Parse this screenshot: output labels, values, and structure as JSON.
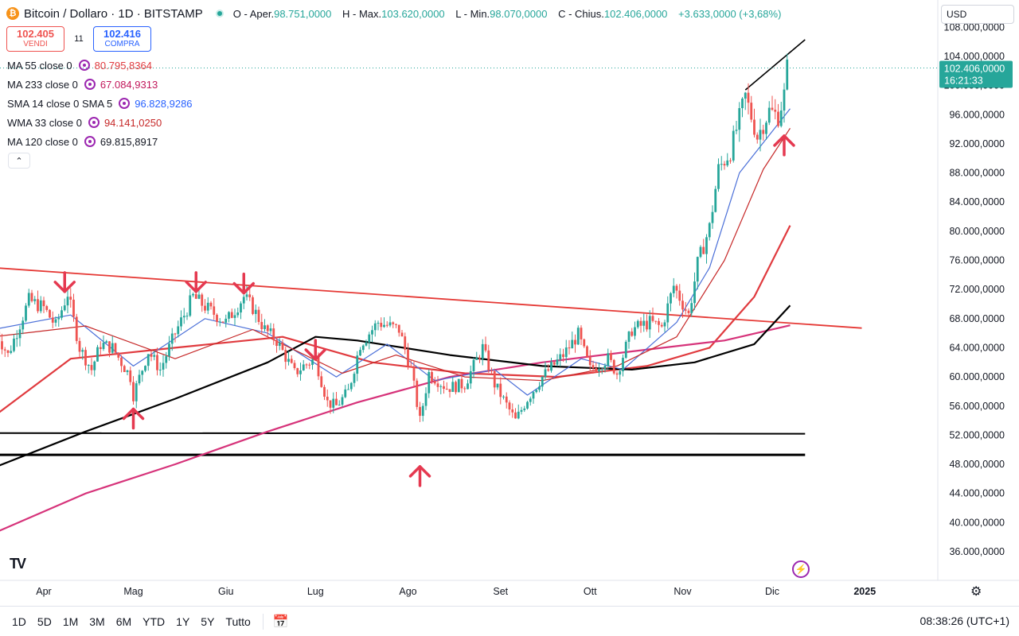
{
  "header": {
    "coin_icon": "bitcoin-icon",
    "title": "Bitcoin / Dollaro · 1D · BITSTAMP",
    "open_label": "O - Aper.",
    "open": "98.751,0000",
    "high_label": "H - Max.",
    "high": "103.620,0000",
    "low_label": "L - Min.",
    "low": "98.070,0000",
    "close_label": "C - Chius.",
    "close": "102.406,0000",
    "change": "+3.633,0000 (+3,68%)"
  },
  "trade": {
    "sell_price": "102.405",
    "sell_label": "VENDI",
    "spread": "11",
    "buy_price": "102.416",
    "buy_label": "COMPRA"
  },
  "indicators": [
    {
      "label": "MA 55 close 0",
      "value": "80.795,8364",
      "color": "#e03a3e"
    },
    {
      "label": "MA 233 close 0",
      "value": "67.084,9313",
      "color": "#c2185b"
    },
    {
      "label": "SMA 14 close 0 SMA 5",
      "value": "96.828,9286",
      "color": "#2962ff"
    },
    {
      "label": "WMA 33 close 0",
      "value": "94.141,0250",
      "color": "#c62828"
    },
    {
      "label": "MA 120 close 0",
      "value": "69.815,8917",
      "color": "#131722"
    }
  ],
  "currency": "USD",
  "price_label": {
    "price": "102.406,0000",
    "countdown": "16:21:33"
  },
  "timeframes": [
    "1D",
    "5D",
    "1M",
    "3M",
    "6M",
    "YTD",
    "1Y",
    "5Y",
    "Tutto"
  ],
  "clock": "08:38:26 (UTC+1)",
  "tv_logo": "TV",
  "colors": {
    "up": "#26a69a",
    "down": "#ef5350",
    "ma55": "#e03a3e",
    "ma233": "#d6337a",
    "ma120": "#000000",
    "sma14": "#4a6fd8",
    "wma33": "#c62828",
    "trend": "#e53935",
    "arrow": "#e53950"
  },
  "chart_data": {
    "type": "candlestick",
    "y_axis_ticks": [
      "36.000,0000",
      "40.000,0000",
      "44.000,0000",
      "48.000,0000",
      "52.000,0000",
      "56.000,0000",
      "60.000,0000",
      "64.000,0000",
      "68.000,0000",
      "72.000,0000",
      "76.000,0000",
      "80.000,0000",
      "84.000,0000",
      "88.000,0000",
      "92.000,0000",
      "96.000,0000",
      "100.000,0000",
      "104.000,0000",
      "108.000,0000"
    ],
    "y_axis_values": [
      36000,
      40000,
      44000,
      48000,
      52000,
      56000,
      60000,
      64000,
      68000,
      72000,
      76000,
      80000,
      84000,
      88000,
      92000,
      96000,
      100000,
      104000,
      108000
    ],
    "x_axis_labels": [
      "Apr",
      "Mag",
      "Giu",
      "Lug",
      "Ago",
      "Set",
      "Ott",
      "Nov",
      "Dic",
      "2025"
    ],
    "x_axis_dates": [
      "2024-04-01",
      "2024-05-01",
      "2024-06-01",
      "2024-07-01",
      "2024-08-01",
      "2024-09-01",
      "2024-10-01",
      "2024-11-01",
      "2024-12-01",
      "2025-01-01"
    ],
    "ylim": [
      32000,
      108000
    ],
    "price_path": [
      [
        "2024-03-15",
        67000
      ],
      [
        "2024-03-20",
        63000
      ],
      [
        "2024-03-27",
        70500
      ],
      [
        "2024-04-01",
        69500
      ],
      [
        "2024-04-05",
        67000
      ],
      [
        "2024-04-09",
        71500
      ],
      [
        "2024-04-13",
        64000
      ],
      [
        "2024-04-17",
        61000
      ],
      [
        "2024-04-20",
        64500
      ],
      [
        "2024-04-24",
        64000
      ],
      [
        "2024-04-30",
        60000
      ],
      [
        "2024-05-01",
        57500
      ],
      [
        "2024-05-06",
        63500
      ],
      [
        "2024-05-10",
        61000
      ],
      [
        "2024-05-15",
        66000
      ],
      [
        "2024-05-21",
        71000
      ],
      [
        "2024-05-27",
        69000
      ],
      [
        "2024-06-01",
        67500
      ],
      [
        "2024-06-07",
        71000
      ],
      [
        "2024-06-10",
        69500
      ],
      [
        "2024-06-14",
        66500
      ],
      [
        "2024-06-18",
        65000
      ],
      [
        "2024-06-24",
        60500
      ],
      [
        "2024-06-27",
        61500
      ],
      [
        "2024-07-01",
        62500
      ],
      [
        "2024-07-05",
        56500
      ],
      [
        "2024-07-08",
        56000
      ],
      [
        "2024-07-12",
        58000
      ],
      [
        "2024-07-16",
        64500
      ],
      [
        "2024-07-22",
        67500
      ],
      [
        "2024-07-29",
        66500
      ],
      [
        "2024-08-02",
        61000
      ],
      [
        "2024-08-05",
        54000
      ],
      [
        "2024-08-08",
        60500
      ],
      [
        "2024-08-14",
        58500
      ],
      [
        "2024-08-20",
        59000
      ],
      [
        "2024-08-26",
        64000
      ],
      [
        "2024-08-30",
        59000
      ],
      [
        "2024-09-06",
        54000
      ],
      [
        "2024-09-10",
        57000
      ],
      [
        "2024-09-15",
        60000
      ],
      [
        "2024-09-22",
        63000
      ],
      [
        "2024-09-27",
        65800
      ],
      [
        "2024-10-01",
        61000
      ],
      [
        "2024-10-07",
        62500
      ],
      [
        "2024-10-10",
        60500
      ],
      [
        "2024-10-15",
        66500
      ],
      [
        "2024-10-21",
        67500
      ],
      [
        "2024-10-25",
        66800
      ],
      [
        "2024-10-29",
        72500
      ],
      [
        "2024-11-03",
        68500
      ],
      [
        "2024-11-06",
        75500
      ],
      [
        "2024-11-10",
        80500
      ],
      [
        "2024-11-13",
        88500
      ],
      [
        "2024-11-17",
        91000
      ],
      [
        "2024-11-22",
        98500
      ],
      [
        "2024-11-26",
        93000
      ],
      [
        "2024-11-30",
        96500
      ],
      [
        "2024-12-03",
        95800
      ],
      [
        "2024-12-05",
        98751
      ],
      [
        "2024-12-06",
        102406
      ]
    ],
    "ma_series": [
      {
        "name": "MA 55",
        "points": [
          [
            "2024-03-15",
            54500
          ],
          [
            "2024-04-10",
            62500
          ],
          [
            "2024-05-15",
            64000
          ],
          [
            "2024-06-20",
            65500
          ],
          [
            "2024-07-20",
            62000
          ],
          [
            "2024-08-20",
            60500
          ],
          [
            "2024-09-20",
            60000
          ],
          [
            "2024-10-20",
            61500
          ],
          [
            "2024-11-10",
            64000
          ],
          [
            "2024-11-25",
            71000
          ],
          [
            "2024-12-07",
            80796
          ]
        ]
      },
      {
        "name": "MA 233",
        "points": [
          [
            "2024-03-15",
            38500
          ],
          [
            "2024-04-15",
            44000
          ],
          [
            "2024-05-15",
            48000
          ],
          [
            "2024-06-15",
            52500
          ],
          [
            "2024-07-15",
            56500
          ],
          [
            "2024-08-15",
            60000
          ],
          [
            "2024-09-15",
            62000
          ],
          [
            "2024-10-15",
            63500
          ],
          [
            "2024-11-15",
            65000
          ],
          [
            "2024-12-07",
            67085
          ]
        ]
      },
      {
        "name": "MA 120",
        "points": [
          [
            "2024-03-15",
            47500
          ],
          [
            "2024-04-15",
            52500
          ],
          [
            "2024-05-15",
            57000
          ],
          [
            "2024-06-15",
            62000
          ],
          [
            "2024-07-01",
            65500
          ],
          [
            "2024-07-15",
            65000
          ],
          [
            "2024-08-15",
            63000
          ],
          [
            "2024-09-15",
            61500
          ],
          [
            "2024-10-15",
            61000
          ],
          [
            "2024-11-05",
            62000
          ],
          [
            "2024-11-25",
            64500
          ],
          [
            "2024-12-07",
            69816
          ]
        ]
      },
      {
        "name": "SMA 14",
        "points": [
          [
            "2024-03-15",
            66500
          ],
          [
            "2024-04-10",
            68500
          ],
          [
            "2024-05-01",
            61500
          ],
          [
            "2024-05-25",
            68000
          ],
          [
            "2024-06-15",
            66000
          ],
          [
            "2024-07-08",
            60000
          ],
          [
            "2024-07-25",
            64500
          ],
          [
            "2024-08-10",
            59500
          ],
          [
            "2024-08-30",
            61000
          ],
          [
            "2024-09-10",
            57500
          ],
          [
            "2024-09-28",
            62500
          ],
          [
            "2024-10-12",
            61000
          ],
          [
            "2024-10-30",
            67500
          ],
          [
            "2024-11-10",
            75000
          ],
          [
            "2024-11-20",
            88000
          ],
          [
            "2024-12-07",
            96829
          ]
        ]
      },
      {
        "name": "WMA 33",
        "points": [
          [
            "2024-03-15",
            65500
          ],
          [
            "2024-04-15",
            67000
          ],
          [
            "2024-05-15",
            62500
          ],
          [
            "2024-06-10",
            66500
          ],
          [
            "2024-07-10",
            60500
          ],
          [
            "2024-07-28",
            63000
          ],
          [
            "2024-08-20",
            60000
          ],
          [
            "2024-09-15",
            59500
          ],
          [
            "2024-10-10",
            61500
          ],
          [
            "2024-10-30",
            65500
          ],
          [
            "2024-11-15",
            76000
          ],
          [
            "2024-11-28",
            88500
          ],
          [
            "2024-12-07",
            94141
          ]
        ]
      }
    ],
    "trendlines": {
      "descending_resistance": [
        [
          "2024-03-15",
          75000
        ],
        [
          "2024-12-31",
          66700
        ]
      ],
      "support_52k": [
        [
          "2024-03-15",
          52300
        ],
        [
          "2024-12-12",
          52200
        ]
      ],
      "support_49k": [
        [
          "2024-03-15",
          49300
        ],
        [
          "2024-12-12",
          49300
        ]
      ],
      "ath_channel": [
        [
          "2024-11-22",
          99400
        ],
        [
          "2024-12-12",
          106300
        ]
      ]
    },
    "markers_down": [
      [
        "2024-04-08",
        72800
      ],
      [
        "2024-05-22",
        72800
      ],
      [
        "2024-06-07",
        72600
      ],
      [
        "2024-07-01",
        63500
      ]
    ],
    "markers_up": [
      [
        "2024-05-01",
        54500
      ],
      [
        "2024-08-05",
        46600
      ],
      [
        "2024-12-05",
        92000
      ]
    ],
    "last_price": 102406
  }
}
